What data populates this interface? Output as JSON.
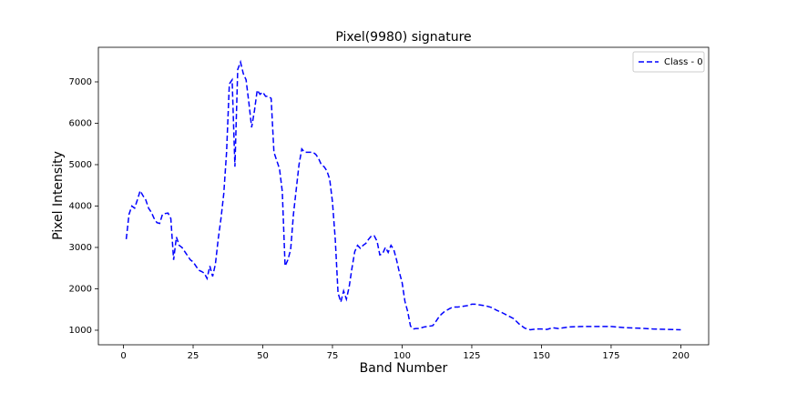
{
  "chart_data": {
    "type": "line",
    "title": "Pixel(9980) signature",
    "xlabel": "Band Number",
    "ylabel": "Pixel Intensity",
    "x": [
      1,
      2,
      3,
      4,
      5,
      6,
      7,
      8,
      9,
      10,
      11,
      12,
      13,
      14,
      15,
      16,
      17,
      18,
      19,
      20,
      21,
      22,
      23,
      24,
      25,
      26,
      27,
      28,
      29,
      30,
      31,
      32,
      33,
      34,
      35,
      36,
      37,
      38,
      39,
      40,
      41,
      42,
      43,
      44,
      45,
      46,
      47,
      48,
      49,
      50,
      51,
      52,
      53,
      54,
      55,
      56,
      57,
      58,
      59,
      60,
      61,
      62,
      63,
      64,
      65,
      66,
      67,
      68,
      69,
      70,
      71,
      72,
      73,
      74,
      75,
      76,
      77,
      78,
      79,
      80,
      81,
      82,
      83,
      84,
      85,
      86,
      87,
      88,
      89,
      90,
      91,
      92,
      93,
      94,
      95,
      96,
      97,
      98,
      99,
      100,
      101,
      102,
      103,
      104,
      105,
      106,
      107,
      108,
      109,
      110,
      111,
      112,
      113,
      114,
      115,
      116,
      117,
      118,
      119,
      120,
      122,
      124,
      125,
      126,
      128,
      130,
      132,
      134,
      136,
      138,
      140,
      142,
      144,
      146,
      148,
      150,
      152,
      154,
      156,
      158,
      160,
      165,
      170,
      175,
      180,
      185,
      190,
      195,
      200
    ],
    "series": [
      {
        "name": "Class - 0",
        "color": "#0000ff",
        "values": [
          3200,
          3800,
          4000,
          3950,
          4150,
          4370,
          4250,
          4150,
          3950,
          3850,
          3700,
          3600,
          3580,
          3800,
          3820,
          3830,
          3700,
          2700,
          3250,
          3050,
          3000,
          2900,
          2800,
          2700,
          2650,
          2550,
          2450,
          2420,
          2380,
          2250,
          2550,
          2300,
          2600,
          3200,
          3700,
          4300,
          5300,
          6950,
          7050,
          4950,
          7300,
          7480,
          7200,
          7050,
          6500,
          5900,
          6300,
          6800,
          6700,
          6750,
          6650,
          6650,
          6600,
          5300,
          5100,
          4900,
          4350,
          2550,
          2700,
          2950,
          3800,
          4400,
          5000,
          5380,
          5300,
          5300,
          5300,
          5300,
          5250,
          5150,
          5000,
          4950,
          4850,
          4650,
          4100,
          3200,
          1900,
          1680,
          1950,
          1750,
          2050,
          2500,
          2900,
          3050,
          2980,
          3050,
          3100,
          3200,
          3280,
          3280,
          3150,
          2820,
          2850,
          3000,
          2880,
          3050,
          2950,
          2700,
          2400,
          2150,
          1700,
          1450,
          1100,
          1030,
          1040,
          1040,
          1060,
          1080,
          1090,
          1100,
          1110,
          1200,
          1300,
          1380,
          1440,
          1480,
          1520,
          1550,
          1560,
          1560,
          1580,
          1600,
          1630,
          1630,
          1610,
          1590,
          1550,
          1480,
          1420,
          1350,
          1280,
          1150,
          1050,
          1010,
          1030,
          1030,
          1020,
          1060,
          1040,
          1060,
          1080,
          1090,
          1090,
          1090,
          1060,
          1050,
          1030,
          1020,
          1010
        ]
      }
    ],
    "xlim": [
      -9,
      210
    ],
    "ylim": [
      648,
      7835
    ],
    "xticks": [
      0,
      25,
      50,
      75,
      100,
      125,
      150,
      175,
      200
    ],
    "yticks": [
      1000,
      2000,
      3000,
      4000,
      5000,
      6000,
      7000
    ],
    "legend": "upper right",
    "line_style": "dashed"
  }
}
